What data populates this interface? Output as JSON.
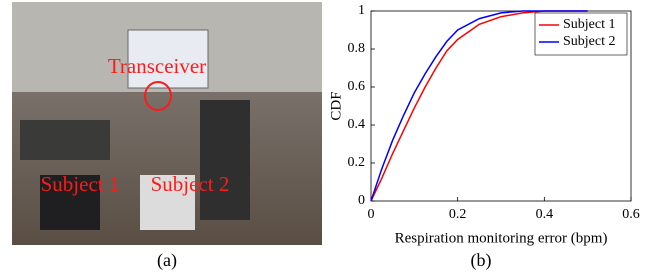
{
  "photo": {
    "labels": [
      "Transceiver",
      "Subject 1",
      "Subject 2"
    ],
    "caption": "(a)"
  },
  "chart_data": {
    "type": "line",
    "caption": "(b)",
    "x_label": "Respiration monitoring error (bpm)",
    "y_label": "CDF",
    "xlim": [
      0,
      0.6
    ],
    "xticks": [
      0,
      0.2,
      0.4,
      0.6
    ],
    "ylim": [
      0,
      1
    ],
    "yticks": [
      0,
      0.2,
      0.4,
      0.6,
      0.8,
      1
    ],
    "legend": "upper right",
    "grid": false,
    "series": [
      {
        "name": "Subject 1",
        "color": "#ff0000",
        "x": [
          0,
          0.025,
          0.05,
          0.075,
          0.1,
          0.125,
          0.15,
          0.175,
          0.2,
          0.25,
          0.3,
          0.35,
          0.4,
          0.5
        ],
        "values": [
          0,
          0.12,
          0.25,
          0.37,
          0.49,
          0.6,
          0.7,
          0.79,
          0.85,
          0.93,
          0.97,
          0.99,
          1,
          1
        ]
      },
      {
        "name": "Subject 2",
        "color": "#0000ff",
        "x": [
          0,
          0.025,
          0.05,
          0.075,
          0.1,
          0.125,
          0.15,
          0.175,
          0.2,
          0.25,
          0.3,
          0.35,
          0.5
        ],
        "values": [
          0,
          0.17,
          0.32,
          0.45,
          0.57,
          0.67,
          0.76,
          0.84,
          0.9,
          0.96,
          0.99,
          1,
          1
        ]
      }
    ]
  }
}
